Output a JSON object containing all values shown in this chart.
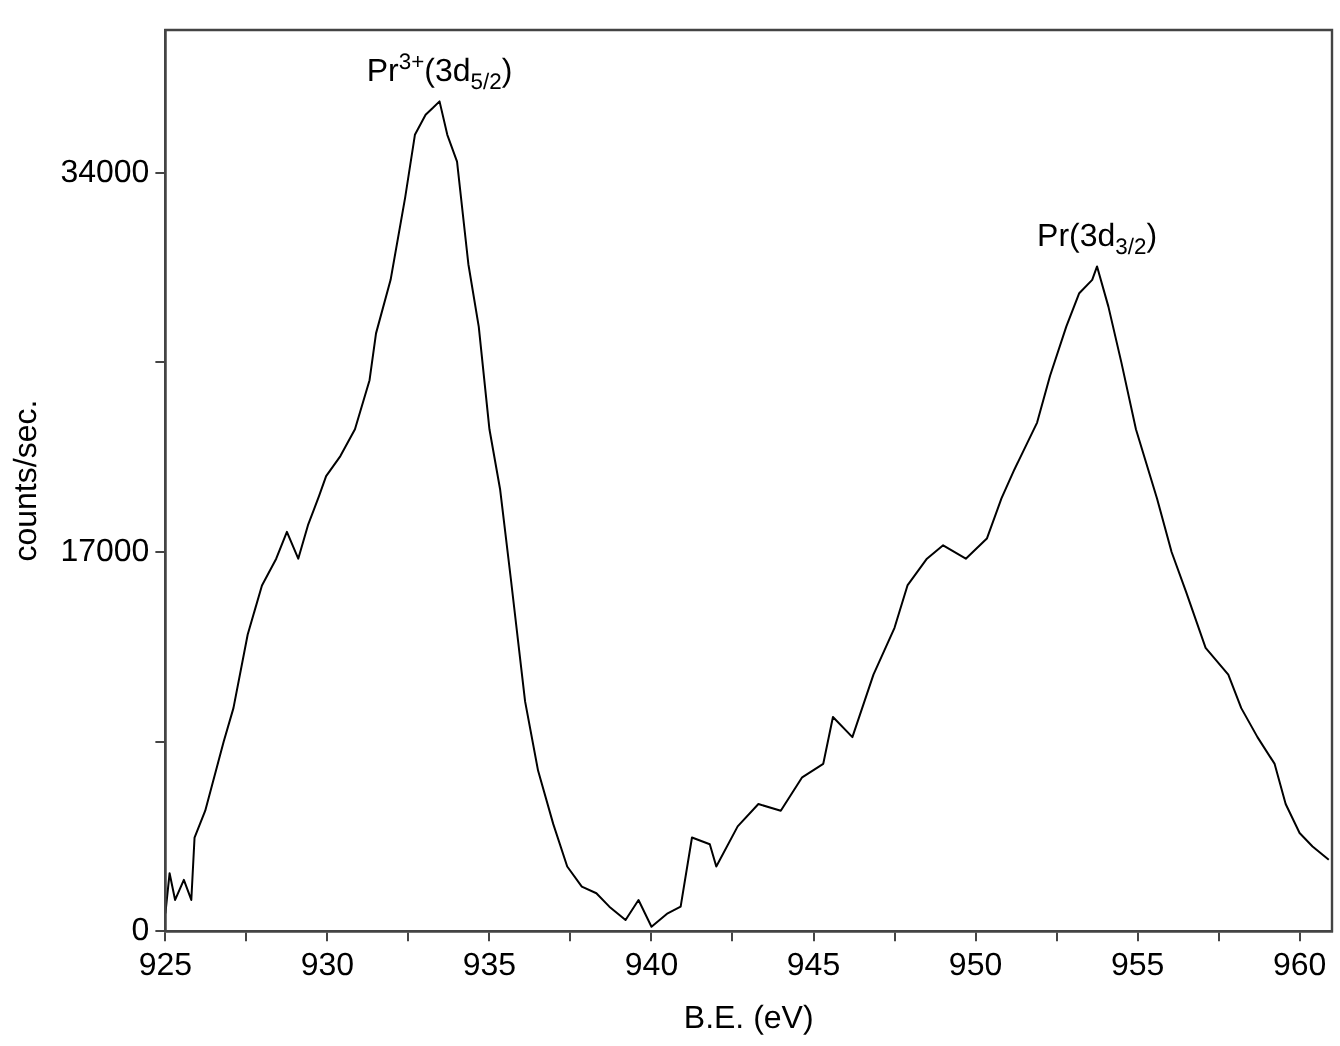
{
  "chart_data": {
    "type": "line",
    "xlabel": "B.E. (eV)",
    "ylabel": "counts/sec.",
    "xlim": [
      925,
      961
    ],
    "ylim": [
      0,
      40400
    ],
    "xticks": [
      925,
      {
        "value": 927.5,
        "label": null
      },
      930,
      {
        "value": 932.5,
        "label": null
      },
      935,
      {
        "value": 937.5,
        "label": null
      },
      940,
      {
        "value": 942.5,
        "label": null
      },
      945,
      {
        "value": 947.5,
        "label": null
      },
      950,
      {
        "value": 952.5,
        "label": null
      },
      955,
      {
        "value": 957.5,
        "label": null
      },
      960
    ],
    "yticks": [
      0,
      {
        "value": 8500,
        "label": null
      },
      17000,
      {
        "value": 25500,
        "label": null
      },
      34000
    ],
    "grid": false,
    "legend": false,
    "marker": "none",
    "line_style": "solid",
    "series": [
      {
        "color": "#000000",
        "x": [
          925.0,
          925.13,
          925.3,
          925.57,
          925.8,
          925.9,
          926.23,
          926.45,
          926.8,
          927.1,
          927.54,
          927.98,
          928.42,
          928.75,
          929.1,
          929.4,
          929.74,
          929.96,
          930.4,
          930.85,
          931.3,
          931.5,
          931.95,
          932.4,
          932.7,
          933.03,
          933.25,
          933.46,
          933.7,
          934.0,
          934.35,
          934.67,
          935.0,
          935.33,
          935.66,
          936.1,
          936.5,
          936.97,
          937.4,
          937.85,
          938.3,
          938.7,
          939.2,
          939.6,
          940.0,
          940.5,
          940.9,
          941.25,
          941.8,
          942.0,
          942.66,
          943.3,
          943.99,
          944.65,
          945.3,
          945.6,
          946.2,
          946.85,
          947.5,
          947.9,
          948.5,
          949.0,
          949.7,
          950.35,
          950.8,
          951.2,
          951.9,
          952.3,
          952.8,
          953.2,
          953.6,
          953.75,
          954.1,
          954.5,
          954.95,
          955.6,
          956.05,
          956.5,
          957.1,
          957.8,
          958.2,
          958.7,
          959.23,
          959.57,
          960.0,
          960.4,
          960.9
        ],
        "values": [
          800,
          2600,
          1400,
          2300,
          1400,
          4200,
          5400,
          6600,
          8500,
          10000,
          13300,
          15500,
          16700,
          17900,
          16700,
          18200,
          19500,
          20400,
          21300,
          22500,
          24700,
          26800,
          29200,
          32900,
          35700,
          36600,
          36900,
          37200,
          35700,
          34500,
          29900,
          27100,
          22500,
          19800,
          15800,
          10300,
          7200,
          4800,
          2900,
          2000,
          1700,
          1100,
          500,
          1400,
          200,
          800,
          1100,
          4200,
          3900,
          2900,
          4700,
          5700,
          5400,
          6900,
          7500,
          9600,
          8700,
          11500,
          13600,
          15500,
          16700,
          17300,
          16700,
          17600,
          19400,
          20700,
          22800,
          24900,
          27100,
          28600,
          29200,
          29800,
          28000,
          25500,
          22500,
          19400,
          17000,
          15200,
          12700,
          11500,
          10000,
          8700,
          7500,
          5700,
          4400,
          3800,
          3200
        ]
      }
    ],
    "annotations": [
      {
        "text": "Pr$^{3+}$(3d$_{5/2}$)",
        "x": 933.46,
        "y": 37200
      },
      {
        "text": "Pr(3d$_{3/2}$)",
        "x": 953.75,
        "y": 29800
      }
    ]
  }
}
